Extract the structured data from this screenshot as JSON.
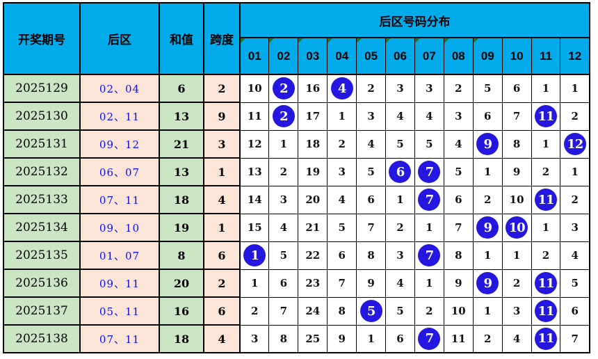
{
  "colors": {
    "header_blue": "#00ABEB",
    "green_cell": "#CBE6C3",
    "peach_cell": "#FCE4D6",
    "ball_blue": "#2418E0",
    "back_text_blue": "#0B0BF0",
    "grid_line": "#000000",
    "triangle_green": "#1E7A1E"
  },
  "chart_data": {
    "type": "table",
    "title": "后区号码分布",
    "headers": {
      "period": "开奖期号",
      "back_zone": "后区",
      "sum": "和值",
      "span": "跨度",
      "distribution_title": "后区号码分布",
      "number_columns": [
        "01",
        "02",
        "03",
        "04",
        "05",
        "06",
        "07",
        "08",
        "09",
        "10",
        "11",
        "12"
      ],
      "triangle_marked_columns": [
        1,
        2,
        3,
        4,
        5,
        6,
        7,
        8,
        9
      ]
    },
    "rows": [
      {
        "period": "2025129",
        "back_zone": "02、04",
        "sum": "6",
        "span": "2",
        "dist": [
          "10",
          "2",
          "16",
          "4",
          "2",
          "3",
          "3",
          "2",
          "5",
          "6",
          "1",
          "1"
        ],
        "ball_columns": [
          2,
          4
        ]
      },
      {
        "period": "2025130",
        "back_zone": "02、11",
        "sum": "13",
        "span": "9",
        "dist": [
          "11",
          "2",
          "17",
          "1",
          "3",
          "4",
          "4",
          "3",
          "6",
          "7",
          "11",
          "2"
        ],
        "ball_columns": [
          2,
          11
        ]
      },
      {
        "period": "2025131",
        "back_zone": "09、12",
        "sum": "21",
        "span": "3",
        "dist": [
          "12",
          "1",
          "18",
          "2",
          "4",
          "5",
          "5",
          "4",
          "9",
          "8",
          "1",
          "12"
        ],
        "ball_columns": [
          9,
          12
        ]
      },
      {
        "period": "2025132",
        "back_zone": "06、07",
        "sum": "13",
        "span": "1",
        "dist": [
          "13",
          "2",
          "19",
          "3",
          "5",
          "6",
          "7",
          "5",
          "1",
          "9",
          "2",
          "1"
        ],
        "ball_columns": [
          6,
          7
        ]
      },
      {
        "period": "2025133",
        "back_zone": "07、11",
        "sum": "18",
        "span": "4",
        "dist": [
          "14",
          "3",
          "20",
          "4",
          "6",
          "1",
          "7",
          "6",
          "2",
          "10",
          "11",
          "2"
        ],
        "ball_columns": [
          7,
          11
        ]
      },
      {
        "period": "2025134",
        "back_zone": "09、10",
        "sum": "19",
        "span": "1",
        "dist": [
          "15",
          "4",
          "21",
          "5",
          "7",
          "2",
          "1",
          "7",
          "9",
          "10",
          "1",
          "3"
        ],
        "ball_columns": [
          9,
          10
        ]
      },
      {
        "period": "2025135",
        "back_zone": "01、07",
        "sum": "8",
        "span": "6",
        "dist": [
          "1",
          "5",
          "22",
          "6",
          "8",
          "3",
          "7",
          "8",
          "1",
          "1",
          "2",
          "4"
        ],
        "ball_columns": [
          1,
          7
        ]
      },
      {
        "period": "2025136",
        "back_zone": "09、11",
        "sum": "20",
        "span": "2",
        "dist": [
          "1",
          "6",
          "23",
          "7",
          "9",
          "4",
          "1",
          "9",
          "9",
          "2",
          "11",
          "5"
        ],
        "ball_columns": [
          9,
          11
        ]
      },
      {
        "period": "2025137",
        "back_zone": "05、11",
        "sum": "16",
        "span": "6",
        "dist": [
          "2",
          "7",
          "24",
          "8",
          "5",
          "5",
          "2",
          "10",
          "1",
          "3",
          "11",
          "6"
        ],
        "ball_columns": [
          5,
          11
        ]
      },
      {
        "period": "2025138",
        "back_zone": "07、11",
        "sum": "18",
        "span": "4",
        "dist": [
          "3",
          "8",
          "25",
          "9",
          "1",
          "6",
          "7",
          "11",
          "2",
          "4",
          "11",
          "7"
        ],
        "ball_columns": [
          7,
          11
        ]
      }
    ]
  }
}
